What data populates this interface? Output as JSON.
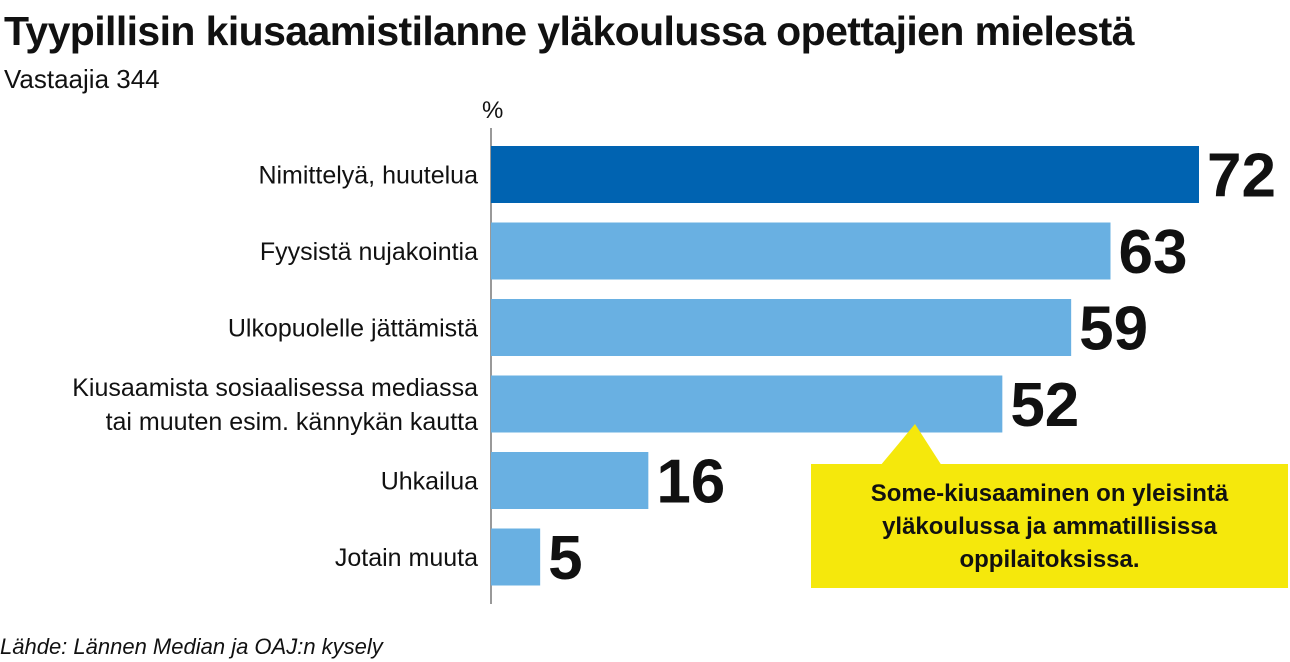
{
  "header": {
    "title": "Tyypillisin kiusaamistilanne yläkoulussa opettajien mielestä",
    "subtitle": "Vastaajia 344"
  },
  "chart_data": {
    "type": "bar",
    "orientation": "horizontal",
    "unit_label": "%",
    "categories": [
      "Nimittelyä, huutelua",
      "Fyysistä nujakointia",
      "Ulkopuolelle jättämistä",
      "Kiusaamista sosiaalisessa mediassa tai muuten esim. kännykän kautta",
      "Uhkailua",
      "Jotain muuta"
    ],
    "category_lines": [
      [
        "Nimittelyä, huutelua"
      ],
      [
        "Fyysistä nujakointia"
      ],
      [
        "Ulkopuolelle jättämistä"
      ],
      [
        "Kiusaamista sosiaalisessa mediassa",
        "tai muuten esim. kännykän kautta"
      ],
      [
        "Uhkailua"
      ],
      [
        "Jotain muuta"
      ]
    ],
    "values": [
      72,
      63,
      59,
      52,
      16,
      5
    ],
    "xlim": [
      0,
      72
    ],
    "highlight_index": 0,
    "colors": {
      "highlight": "#0063b1",
      "bar": "#69b0e2",
      "axis": "#999999",
      "callout": "#f5e80c"
    },
    "annotation": "Some-kiusaaminen on yleisintä yläkoulussa ja ammatillisissa oppilaitoksissa.",
    "annotation_target_index": 3
  },
  "footer": {
    "source": "Lähde: Lännen Median ja OAJ:n kysely"
  }
}
